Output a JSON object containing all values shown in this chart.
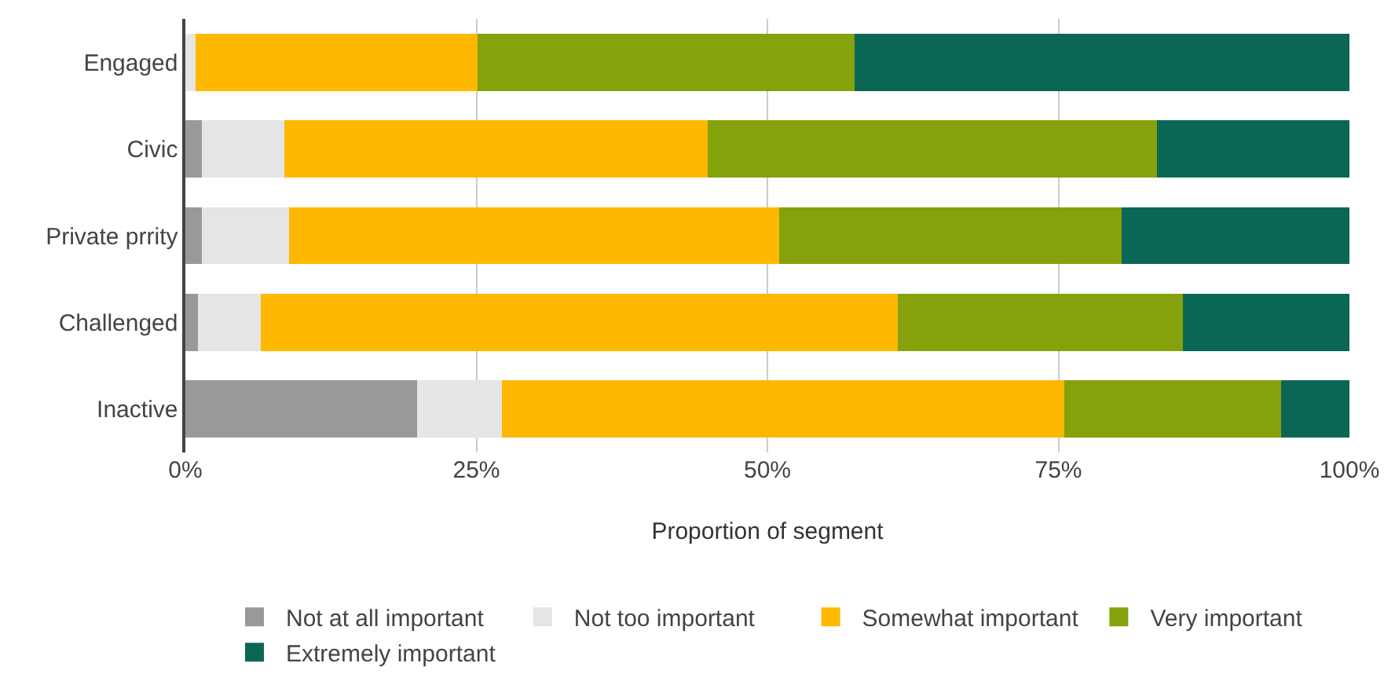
{
  "chart_data": {
    "type": "bar",
    "orientation": "horizontal",
    "stacked": true,
    "xlabel": "Proportion of segment",
    "categories": [
      "Engaged",
      "Civic",
      "Private prrity",
      "Challenged",
      "Inactive"
    ],
    "series": [
      {
        "name": "Not at all important",
        "color": "#999999",
        "values": [
          0,
          1.4,
          1.4,
          1.1,
          19.9
        ]
      },
      {
        "name": "Not too important",
        "color": "#e5e5e5",
        "values": [
          0.9,
          7.1,
          7.5,
          5.4,
          7.3
        ]
      },
      {
        "name": "Somewhat important",
        "color": "#ffb800",
        "values": [
          24.2,
          36.4,
          42.1,
          54.7,
          48.3
        ]
      },
      {
        "name": "Very important",
        "color": "#85a10b",
        "values": [
          32.4,
          38.6,
          29.4,
          24.5,
          18.6
        ]
      },
      {
        "name": "Extremely important",
        "color": "#0b6655",
        "values": [
          42.5,
          16.5,
          19.6,
          14.3,
          5.9
        ]
      }
    ],
    "xlim": [
      0,
      100
    ],
    "xticks": [
      {
        "value": 0,
        "label": "0%"
      },
      {
        "value": 25,
        "label": "25%"
      },
      {
        "value": 50,
        "label": "50%"
      },
      {
        "value": 75,
        "label": "75%"
      },
      {
        "value": 100,
        "label": "100%"
      }
    ],
    "grid": "x",
    "legend": "bottom"
  }
}
